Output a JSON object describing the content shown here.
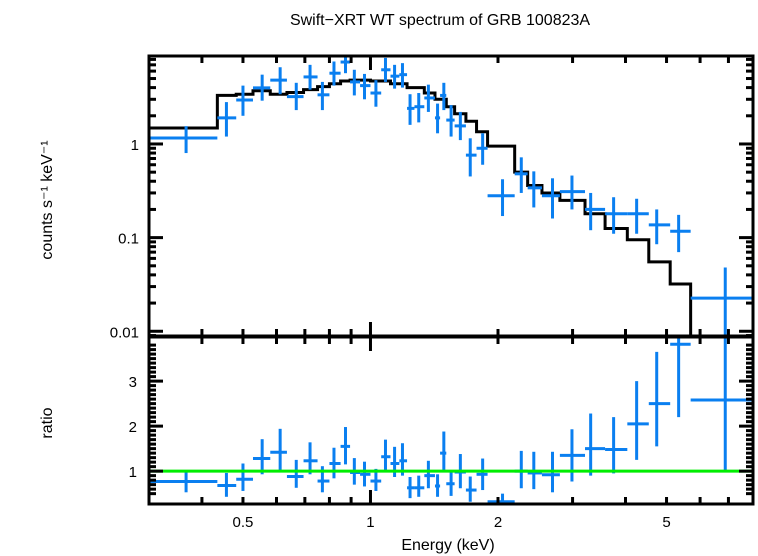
{
  "chart_data": [
    {
      "type": "scatter",
      "panel": "spectrum",
      "title": "Swift−XRT WT spectrum of GRB 100823A",
      "xlabel": "Energy (keV)",
      "ylabel": "counts s⁻¹ keV⁻¹",
      "xscale": "log",
      "yscale": "log",
      "xlim": [
        0.3,
        8.0
      ],
      "ylim": [
        0.0089,
        8.7
      ],
      "yticks": [
        {
          "value": 0.01,
          "label": "0.01"
        },
        {
          "value": 0.1,
          "label": "0.1"
        },
        {
          "value": 1,
          "label": "1"
        }
      ],
      "data_color": "#0a7ff0",
      "model_color": "#000000",
      "series": [
        {
          "name": "data",
          "points": [
            {
              "x": 0.367,
              "xlo": 0.3,
              "xhi": 0.435,
              "y": 1.16,
              "ylo": 0.8,
              "yhi": 1.55
            },
            {
              "x": 0.457,
              "xlo": 0.435,
              "xhi": 0.482,
              "y": 1.9,
              "ylo": 1.2,
              "yhi": 2.8
            },
            {
              "x": 0.5,
              "xlo": 0.482,
              "xhi": 0.528,
              "y": 2.95,
              "ylo": 2.0,
              "yhi": 4.2
            },
            {
              "x": 0.555,
              "xlo": 0.528,
              "xhi": 0.58,
              "y": 3.97,
              "ylo": 2.9,
              "yhi": 5.5
            },
            {
              "x": 0.612,
              "xlo": 0.58,
              "xhi": 0.635,
              "y": 4.8,
              "ylo": 3.4,
              "yhi": 6.6
            },
            {
              "x": 0.668,
              "xlo": 0.635,
              "xhi": 0.695,
              "y": 3.2,
              "ylo": 2.3,
              "yhi": 4.5
            },
            {
              "x": 0.72,
              "xlo": 0.695,
              "xhi": 0.75,
              "y": 5.2,
              "ylo": 3.8,
              "yhi": 7.0
            },
            {
              "x": 0.77,
              "xlo": 0.75,
              "xhi": 0.8,
              "y": 3.35,
              "ylo": 2.3,
              "yhi": 4.6
            },
            {
              "x": 0.82,
              "xlo": 0.8,
              "xhi": 0.85,
              "y": 5.7,
              "ylo": 4.2,
              "yhi": 7.6
            },
            {
              "x": 0.873,
              "xlo": 0.85,
              "xhi": 0.895,
              "y": 7.5,
              "ylo": 5.7,
              "yhi": 9.5
            },
            {
              "x": 0.916,
              "xlo": 0.895,
              "xhi": 0.945,
              "y": 4.6,
              "ylo": 3.3,
              "yhi": 6.2
            },
            {
              "x": 0.968,
              "xlo": 0.945,
              "xhi": 1.0,
              "y": 4.2,
              "ylo": 3.0,
              "yhi": 5.6
            },
            {
              "x": 1.03,
              "xlo": 1.0,
              "xhi": 1.06,
              "y": 3.5,
              "ylo": 2.5,
              "yhi": 4.8
            },
            {
              "x": 1.085,
              "xlo": 1.06,
              "xhi": 1.115,
              "y": 6.2,
              "ylo": 4.6,
              "yhi": 8.3
            },
            {
              "x": 1.14,
              "xlo": 1.115,
              "xhi": 1.17,
              "y": 5.3,
              "ylo": 3.9,
              "yhi": 7.0
            },
            {
              "x": 1.19,
              "xlo": 1.17,
              "xhi": 1.22,
              "y": 5.5,
              "ylo": 4.0,
              "yhi": 7.3
            },
            {
              "x": 1.24,
              "xlo": 1.22,
              "xhi": 1.27,
              "y": 2.4,
              "ylo": 1.6,
              "yhi": 3.4
            },
            {
              "x": 1.3,
              "xlo": 1.27,
              "xhi": 1.34,
              "y": 2.5,
              "ylo": 1.7,
              "yhi": 3.5
            },
            {
              "x": 1.37,
              "xlo": 1.34,
              "xhi": 1.42,
              "y": 3.1,
              "ylo": 2.2,
              "yhi": 4.3
            },
            {
              "x": 1.44,
              "xlo": 1.42,
              "xhi": 1.46,
              "y": 1.9,
              "ylo": 1.3,
              "yhi": 2.7
            },
            {
              "x": 1.49,
              "xlo": 1.46,
              "xhi": 1.51,
              "y": 3.3,
              "ylo": 2.3,
              "yhi": 4.5
            },
            {
              "x": 1.55,
              "xlo": 1.51,
              "xhi": 1.58,
              "y": 1.8,
              "ylo": 1.2,
              "yhi": 2.6
            },
            {
              "x": 1.63,
              "xlo": 1.58,
              "xhi": 1.68,
              "y": 1.56,
              "ylo": 1.1,
              "yhi": 2.2
            },
            {
              "x": 1.72,
              "xlo": 1.68,
              "xhi": 1.78,
              "y": 0.76,
              "ylo": 0.45,
              "yhi": 1.15
            },
            {
              "x": 1.84,
              "xlo": 1.78,
              "xhi": 1.89,
              "y": 0.9,
              "ylo": 0.6,
              "yhi": 1.3
            },
            {
              "x": 2.05,
              "xlo": 1.89,
              "xhi": 2.19,
              "y": 0.28,
              "ylo": 0.17,
              "yhi": 0.42
            },
            {
              "x": 2.27,
              "xlo": 2.19,
              "xhi": 2.35,
              "y": 0.48,
              "ylo": 0.3,
              "yhi": 0.72
            },
            {
              "x": 2.43,
              "xlo": 2.35,
              "xhi": 2.54,
              "y": 0.34,
              "ylo": 0.21,
              "yhi": 0.51
            },
            {
              "x": 2.69,
              "xlo": 2.54,
              "xhi": 2.8,
              "y": 0.28,
              "ylo": 0.16,
              "yhi": 0.43
            },
            {
              "x": 2.99,
              "xlo": 2.8,
              "xhi": 3.21,
              "y": 0.31,
              "ylo": 0.2,
              "yhi": 0.46
            },
            {
              "x": 3.31,
              "xlo": 3.21,
              "xhi": 3.58,
              "y": 0.2,
              "ylo": 0.12,
              "yhi": 0.3
            },
            {
              "x": 3.75,
              "xlo": 3.58,
              "xhi": 4.04,
              "y": 0.18,
              "ylo": 0.11,
              "yhi": 0.27
            },
            {
              "x": 4.25,
              "xlo": 4.04,
              "xhi": 4.54,
              "y": 0.18,
              "ylo": 0.11,
              "yhi": 0.26
            },
            {
              "x": 4.74,
              "xlo": 4.54,
              "xhi": 5.1,
              "y": 0.137,
              "ylo": 0.085,
              "yhi": 0.2
            },
            {
              "x": 5.34,
              "xlo": 5.1,
              "xhi": 5.7,
              "y": 0.117,
              "ylo": 0.07,
              "yhi": 0.175
            },
            {
              "x": 6.88,
              "xlo": 5.7,
              "xhi": 8.0,
              "y": 0.0226,
              "ylo": 0.0089,
              "yhi": 0.048
            }
          ]
        },
        {
          "name": "model",
          "steps": [
            {
              "x0": 0.3,
              "x1": 0.435,
              "y": 1.48
            },
            {
              "x0": 0.435,
              "x1": 0.482,
              "y": 3.3
            },
            {
              "x0": 0.482,
              "x1": 0.528,
              "y": 3.4
            },
            {
              "x0": 0.528,
              "x1": 0.58,
              "y": 3.7
            },
            {
              "x0": 0.58,
              "x1": 0.635,
              "y": 3.4
            },
            {
              "x0": 0.635,
              "x1": 0.695,
              "y": 3.55
            },
            {
              "x0": 0.695,
              "x1": 0.75,
              "y": 3.8
            },
            {
              "x0": 0.75,
              "x1": 0.8,
              "y": 4.1
            },
            {
              "x0": 0.8,
              "x1": 0.85,
              "y": 4.4
            },
            {
              "x0": 0.85,
              "x1": 0.895,
              "y": 4.7
            },
            {
              "x0": 0.895,
              "x1": 1.0,
              "y": 4.8
            },
            {
              "x0": 1.0,
              "x1": 1.115,
              "y": 4.7
            },
            {
              "x0": 1.115,
              "x1": 1.22,
              "y": 4.4
            },
            {
              "x0": 1.22,
              "x1": 1.34,
              "y": 4.0
            },
            {
              "x0": 1.34,
              "x1": 1.42,
              "y": 3.5
            },
            {
              "x0": 1.42,
              "x1": 1.51,
              "y": 3.0
            },
            {
              "x0": 1.51,
              "x1": 1.58,
              "y": 2.5
            },
            {
              "x0": 1.58,
              "x1": 1.68,
              "y": 2.1
            },
            {
              "x0": 1.68,
              "x1": 1.78,
              "y": 1.75
            },
            {
              "x0": 1.78,
              "x1": 1.89,
              "y": 1.35
            },
            {
              "x0": 1.89,
              "x1": 2.19,
              "y": 0.95
            },
            {
              "x0": 2.19,
              "x1": 2.35,
              "y": 0.5
            },
            {
              "x0": 2.35,
              "x1": 2.54,
              "y": 0.36
            },
            {
              "x0": 2.54,
              "x1": 2.8,
              "y": 0.3
            },
            {
              "x0": 2.8,
              "x1": 3.21,
              "y": 0.25
            },
            {
              "x0": 3.21,
              "x1": 3.58,
              "y": 0.18
            },
            {
              "x0": 3.58,
              "x1": 4.04,
              "y": 0.125
            },
            {
              "x0": 4.04,
              "x1": 4.54,
              "y": 0.095
            },
            {
              "x0": 4.54,
              "x1": 5.1,
              "y": 0.055
            },
            {
              "x0": 5.1,
              "x1": 5.7,
              "y": 0.032
            },
            {
              "x0": 5.7,
              "x1": 8.0,
              "y": 0.0089
            }
          ]
        }
      ]
    },
    {
      "type": "scatter",
      "panel": "ratio",
      "xlabel": "Energy (keV)",
      "ylabel": "ratio",
      "xscale": "log",
      "yscale": "linear",
      "xlim": [
        0.3,
        8.0
      ],
      "ylim": [
        0.27,
        3.98
      ],
      "xticks": [
        {
          "value": 0.5,
          "label": "0.5"
        },
        {
          "value": 1,
          "label": "1"
        },
        {
          "value": 2,
          "label": "2"
        },
        {
          "value": 5,
          "label": "5"
        }
      ],
      "yticks": [
        {
          "value": 1,
          "label": "1"
        },
        {
          "value": 2,
          "label": "2"
        },
        {
          "value": 3,
          "label": "3"
        }
      ],
      "reference_line": {
        "y": 1,
        "color": "#00ee00"
      },
      "data_color": "#0a7ff0",
      "series": [
        {
          "name": "ratio",
          "points": [
            {
              "x": 0.367,
              "xlo": 0.3,
              "xhi": 0.435,
              "y": 0.77,
              "ylo": 0.53,
              "yhi": 1.02
            },
            {
              "x": 0.457,
              "xlo": 0.435,
              "xhi": 0.482,
              "y": 0.68,
              "ylo": 0.43,
              "yhi": 0.96
            },
            {
              "x": 0.5,
              "xlo": 0.482,
              "xhi": 0.528,
              "y": 0.82,
              "ylo": 0.56,
              "yhi": 1.17
            },
            {
              "x": 0.555,
              "xlo": 0.528,
              "xhi": 0.58,
              "y": 1.28,
              "ylo": 0.93,
              "yhi": 1.71
            },
            {
              "x": 0.612,
              "xlo": 0.58,
              "xhi": 0.635,
              "y": 1.42,
              "ylo": 1.02,
              "yhi": 1.94
            },
            {
              "x": 0.668,
              "xlo": 0.635,
              "xhi": 0.695,
              "y": 0.88,
              "ylo": 0.63,
              "yhi": 1.25
            },
            {
              "x": 0.72,
              "xlo": 0.695,
              "xhi": 0.75,
              "y": 1.23,
              "ylo": 0.93,
              "yhi": 1.64
            },
            {
              "x": 0.77,
              "xlo": 0.75,
              "xhi": 0.8,
              "y": 0.78,
              "ylo": 0.53,
              "yhi": 1.11
            },
            {
              "x": 0.82,
              "xlo": 0.8,
              "xhi": 0.85,
              "y": 1.17,
              "ylo": 0.84,
              "yhi": 1.52
            },
            {
              "x": 0.873,
              "xlo": 0.85,
              "xhi": 0.895,
              "y": 1.55,
              "ylo": 1.15,
              "yhi": 1.98
            },
            {
              "x": 0.916,
              "xlo": 0.895,
              "xhi": 0.945,
              "y": 0.97,
              "ylo": 0.7,
              "yhi": 1.29
            },
            {
              "x": 0.968,
              "xlo": 0.945,
              "xhi": 1.0,
              "y": 0.93,
              "ylo": 0.66,
              "yhi": 1.21
            },
            {
              "x": 1.03,
              "xlo": 1.0,
              "xhi": 1.06,
              "y": 0.78,
              "ylo": 0.56,
              "yhi": 1.05
            },
            {
              "x": 1.085,
              "xlo": 1.06,
              "xhi": 1.115,
              "y": 1.32,
              "ylo": 0.98,
              "yhi": 1.7
            },
            {
              "x": 1.14,
              "xlo": 1.115,
              "xhi": 1.17,
              "y": 1.17,
              "ylo": 0.87,
              "yhi": 1.54
            },
            {
              "x": 1.19,
              "xlo": 1.17,
              "xhi": 1.22,
              "y": 1.23,
              "ylo": 0.9,
              "yhi": 1.62
            },
            {
              "x": 1.24,
              "xlo": 1.22,
              "xhi": 1.27,
              "y": 0.63,
              "ylo": 0.4,
              "yhi": 0.87
            },
            {
              "x": 1.3,
              "xlo": 1.27,
              "xhi": 1.34,
              "y": 0.63,
              "ylo": 0.43,
              "yhi": 0.9
            },
            {
              "x": 1.37,
              "xlo": 1.34,
              "xhi": 1.42,
              "y": 0.9,
              "ylo": 0.62,
              "yhi": 1.23
            },
            {
              "x": 1.44,
              "xlo": 1.42,
              "xhi": 1.46,
              "y": 0.67,
              "ylo": 0.43,
              "yhi": 0.93
            },
            {
              "x": 1.49,
              "xlo": 1.46,
              "xhi": 1.51,
              "y": 1.4,
              "ylo": 0.97,
              "yhi": 1.88
            },
            {
              "x": 1.55,
              "xlo": 1.51,
              "xhi": 1.58,
              "y": 0.72,
              "ylo": 0.45,
              "yhi": 1.02
            },
            {
              "x": 1.63,
              "xlo": 1.58,
              "xhi": 1.68,
              "y": 0.98,
              "ylo": 0.62,
              "yhi": 1.38
            },
            {
              "x": 1.72,
              "xlo": 1.68,
              "xhi": 1.78,
              "y": 0.58,
              "ylo": 0.32,
              "yhi": 0.88
            },
            {
              "x": 1.84,
              "xlo": 1.78,
              "xhi": 1.89,
              "y": 0.93,
              "ylo": 0.58,
              "yhi": 1.28
            },
            {
              "x": 2.05,
              "xlo": 1.89,
              "xhi": 2.19,
              "y": 0.32,
              "ylo": 0.27,
              "yhi": 0.5
            },
            {
              "x": 2.27,
              "xlo": 2.19,
              "xhi": 2.35,
              "y": 1.0,
              "ylo": 0.62,
              "yhi": 1.45
            },
            {
              "x": 2.43,
              "xlo": 2.35,
              "xhi": 2.54,
              "y": 0.96,
              "ylo": 0.6,
              "yhi": 1.43
            },
            {
              "x": 2.69,
              "xlo": 2.54,
              "xhi": 2.8,
              "y": 0.92,
              "ylo": 0.53,
              "yhi": 1.43
            },
            {
              "x": 2.99,
              "xlo": 2.8,
              "xhi": 3.21,
              "y": 1.35,
              "ylo": 0.77,
              "yhi": 1.93
            },
            {
              "x": 3.31,
              "xlo": 3.21,
              "xhi": 3.58,
              "y": 1.5,
              "ylo": 0.9,
              "yhi": 2.28
            },
            {
              "x": 3.75,
              "xlo": 3.58,
              "xhi": 4.04,
              "y": 1.48,
              "ylo": 0.95,
              "yhi": 2.2
            },
            {
              "x": 4.25,
              "xlo": 4.04,
              "xhi": 4.54,
              "y": 2.05,
              "ylo": 1.25,
              "yhi": 3.0
            },
            {
              "x": 4.74,
              "xlo": 4.54,
              "xhi": 5.1,
              "y": 2.5,
              "ylo": 1.55,
              "yhi": 3.65
            },
            {
              "x": 5.34,
              "xlo": 5.1,
              "xhi": 5.7,
              "y": 3.82,
              "ylo": 2.2,
              "yhi": 3.98
            },
            {
              "x": 6.88,
              "xlo": 5.7,
              "xhi": 8.0,
              "y": 2.58,
              "ylo": 1.0,
              "yhi": 3.98
            }
          ]
        }
      ]
    }
  ]
}
